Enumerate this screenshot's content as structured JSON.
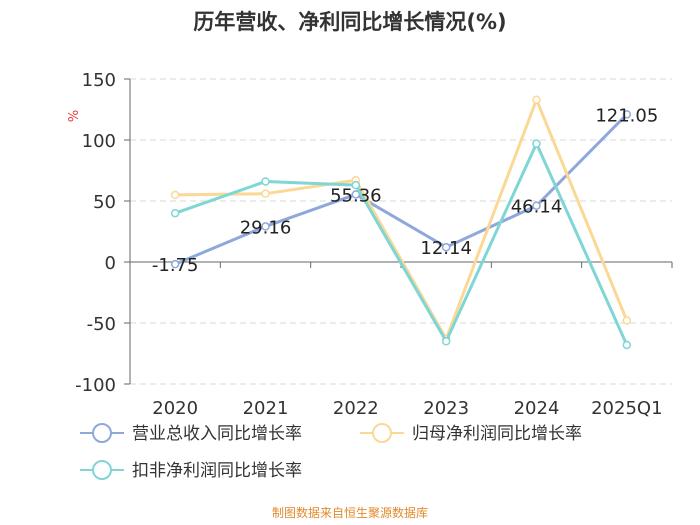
{
  "chart_data": {
    "type": "line",
    "title": "历年营收、净利同比增长情况(%)",
    "ylabel": "%",
    "xlabel": "",
    "categories": [
      "2020",
      "2021",
      "2022",
      "2023",
      "2024",
      "2025Q1"
    ],
    "ylim": [
      -100,
      150
    ],
    "yticks": [
      "150",
      "100",
      "50",
      "0",
      "-50",
      "-100"
    ],
    "grid": true,
    "legend_position": "bottom",
    "series": [
      {
        "name": "营业总收入同比增长率",
        "color": "#8fa8dc",
        "values": [
          -1.75,
          29.16,
          55.36,
          12.14,
          46.14,
          121.05
        ],
        "labels": [
          "-1.75",
          "29.16",
          "55.36",
          "12.14",
          "46.14",
          "121.05"
        ]
      },
      {
        "name": "归母净利润同比增长率",
        "color": "#fbd896",
        "values": [
          55,
          56,
          67,
          -63,
          133,
          -48
        ]
      },
      {
        "name": "扣非净利润同比增长率",
        "color": "#7fd6d4",
        "values": [
          40,
          66,
          63,
          -65,
          97,
          -68
        ]
      }
    ]
  },
  "footer": {
    "source": "制图数据来自恒生聚源数据库"
  }
}
